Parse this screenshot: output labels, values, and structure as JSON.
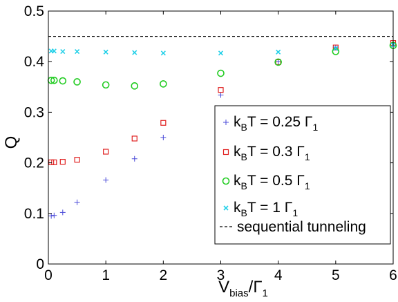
{
  "chart_data": {
    "type": "scatter",
    "xlabel": {
      "main": "V",
      "sub": "bias",
      "mid": "/Γ",
      "sub2": "1"
    },
    "ylabel": "Q",
    "xlim": [
      0,
      6
    ],
    "ylim": [
      0,
      0.5
    ],
    "xticks": [
      "0",
      "1",
      "2",
      "3",
      "4",
      "5",
      "6"
    ],
    "yticks": [
      "0",
      "0.1",
      "0.2",
      "0.3",
      "0.4",
      "0.5"
    ],
    "grid": false,
    "legend_position": "lower-right",
    "series": [
      {
        "name": "k_BT = 0.25 Γ_1",
        "legend": {
          "k": "k",
          "kSub": "B",
          "rest": "T = 0.25 Γ",
          "gSub": "1"
        },
        "marker": "plus",
        "color": "#4848d8",
        "x": [
          0.05,
          0.1,
          0.25,
          0.5,
          1,
          1.5,
          2,
          3,
          4,
          5,
          6
        ],
        "y": [
          0.095,
          0.096,
          0.102,
          0.122,
          0.166,
          0.208,
          0.25,
          0.334,
          0.4,
          0.428,
          0.437
        ]
      },
      {
        "name": "k_BT = 0.3 Γ_1",
        "legend": {
          "k": "k",
          "kSub": "B",
          "rest": "T = 0.3 Γ",
          "gSub": "1"
        },
        "marker": "square",
        "color": "#e02020",
        "x": [
          0.05,
          0.1,
          0.25,
          0.5,
          1,
          1.5,
          2,
          3,
          4,
          5,
          6
        ],
        "y": [
          0.201,
          0.201,
          0.202,
          0.206,
          0.222,
          0.248,
          0.279,
          0.344,
          0.399,
          0.428,
          0.437
        ]
      },
      {
        "name": "k_BT = 0.5 Γ_1",
        "legend": {
          "k": "k",
          "kSub": "B",
          "rest": "T = 0.5 Γ",
          "gSub": "1"
        },
        "marker": "circle",
        "color": "#22cc22",
        "x": [
          0.05,
          0.1,
          0.25,
          0.5,
          1,
          1.5,
          2,
          3,
          4,
          5,
          6
        ],
        "y": [
          0.363,
          0.363,
          0.362,
          0.36,
          0.354,
          0.352,
          0.356,
          0.377,
          0.399,
          0.42,
          0.432
        ]
      },
      {
        "name": "k_BT = 1 Γ_1",
        "legend": {
          "k": "k",
          "kSub": "B",
          "rest": "T = 1 Γ",
          "gSub": "1"
        },
        "marker": "x",
        "color": "#22d0e8",
        "x": [
          0.05,
          0.1,
          0.25,
          0.5,
          1,
          1.5,
          2,
          3,
          4,
          5,
          6
        ],
        "y": [
          0.421,
          0.421,
          0.42,
          0.42,
          0.419,
          0.418,
          0.417,
          0.417,
          0.419,
          0.426,
          0.433
        ]
      }
    ],
    "reference_line": {
      "name": "sequential tunneling",
      "style": "dashed",
      "color": "#000000",
      "y": 0.45
    }
  }
}
